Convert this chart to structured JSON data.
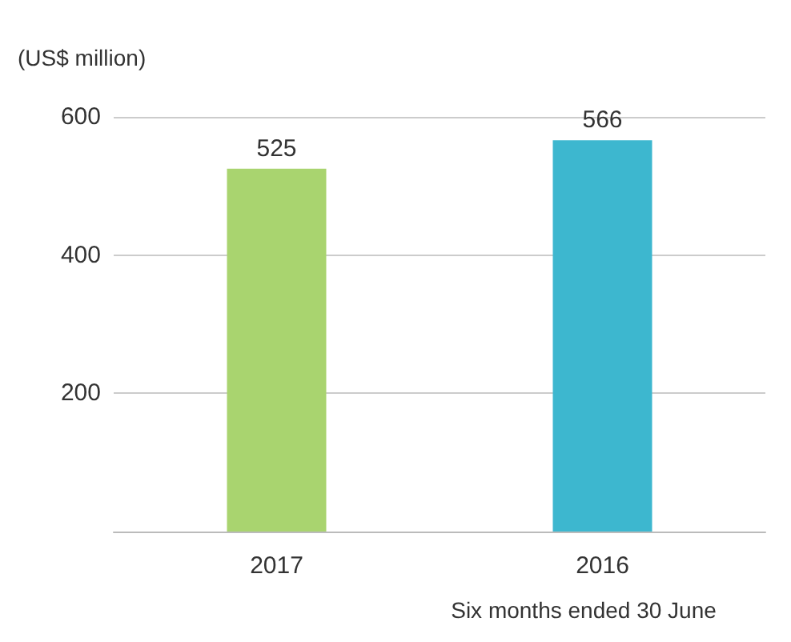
{
  "chart_data": {
    "type": "bar",
    "ylabel": "(US$ million)",
    "xlabel": "Six months ended 30 June",
    "categories": [
      "2017",
      "2016"
    ],
    "values": [
      525,
      566
    ],
    "colors": [
      "#a9d46f",
      "#3db7cf"
    ],
    "ylim": [
      0,
      600
    ],
    "yticks": [
      {
        "value": 0,
        "label": null
      },
      200,
      400,
      600
    ],
    "grid": "y",
    "data_labels": true
  }
}
